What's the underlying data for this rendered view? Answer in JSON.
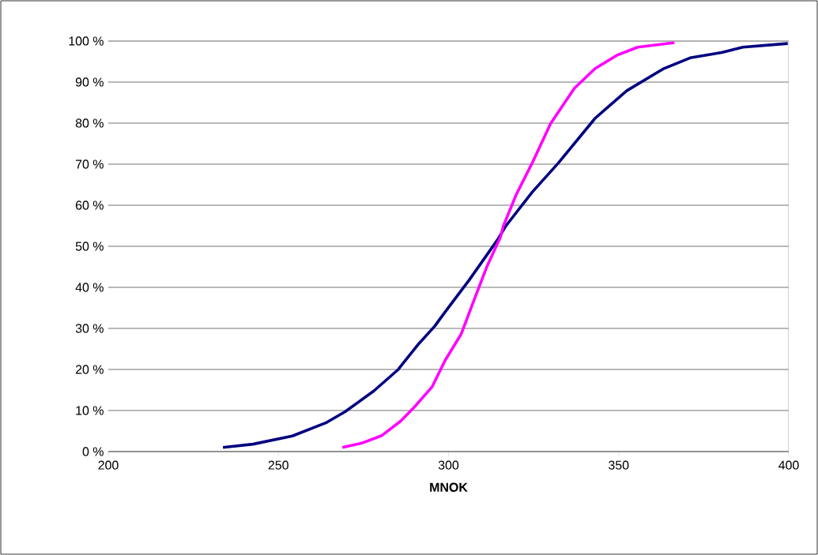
{
  "chart_data": {
    "type": "line",
    "xlabel": "MNOK",
    "xlim": [
      200,
      400
    ],
    "xticks": [
      200,
      250,
      300,
      350,
      400
    ],
    "ylim": [
      0,
      100
    ],
    "yticks": [
      {
        "value": 0,
        "label": "0 %"
      },
      {
        "value": 10,
        "label": "10 %"
      },
      {
        "value": 20,
        "label": "20 %"
      },
      {
        "value": 30,
        "label": "30 %"
      },
      {
        "value": 40,
        "label": "40 %"
      },
      {
        "value": 50,
        "label": "50 %"
      },
      {
        "value": 60,
        "label": "60 %"
      },
      {
        "value": 70,
        "label": "70 %"
      },
      {
        "value": 80,
        "label": "80 %"
      },
      {
        "value": 90,
        "label": "90 %"
      },
      {
        "value": 100,
        "label": "100 %"
      }
    ],
    "grid": "y",
    "marker": "none",
    "line_style": "solid",
    "series": [
      {
        "color": "#000080",
        "x": [
          233.7,
          242.5,
          254.1,
          264.2,
          269.6,
          278.1,
          285.1,
          291.3,
          295.9,
          299.0,
          306.0,
          314.5,
          316.8,
          324.6,
          332.3,
          343.1,
          352.4,
          363.3,
          371.0,
          380.3,
          386.5,
          399.7
        ],
        "values": [
          1.0,
          1.8,
          3.8,
          7.1,
          9.7,
          14.8,
          19.9,
          26.3,
          30.5,
          34.0,
          41.7,
          51.7,
          54.9,
          63.2,
          70.3,
          81.2,
          87.9,
          93.3,
          95.9,
          97.2,
          98.5,
          99.4
        ]
      },
      {
        "color": "#ff00ff",
        "x": [
          268.8,
          274.3,
          280.4,
          285.9,
          289.7,
          295.2,
          299.0,
          303.7,
          307.5,
          311.4,
          315.3,
          316.1,
          319.9,
          324.6,
          330.0,
          337.0,
          343.1,
          349.4,
          355.6,
          366.4
        ],
        "values": [
          1.0,
          2.0,
          3.9,
          7.4,
          10.6,
          15.8,
          22.2,
          28.6,
          36.9,
          45.3,
          52.3,
          54.9,
          62.6,
          70.3,
          79.9,
          88.5,
          93.3,
          96.5,
          98.5,
          99.6
        ]
      }
    ]
  }
}
